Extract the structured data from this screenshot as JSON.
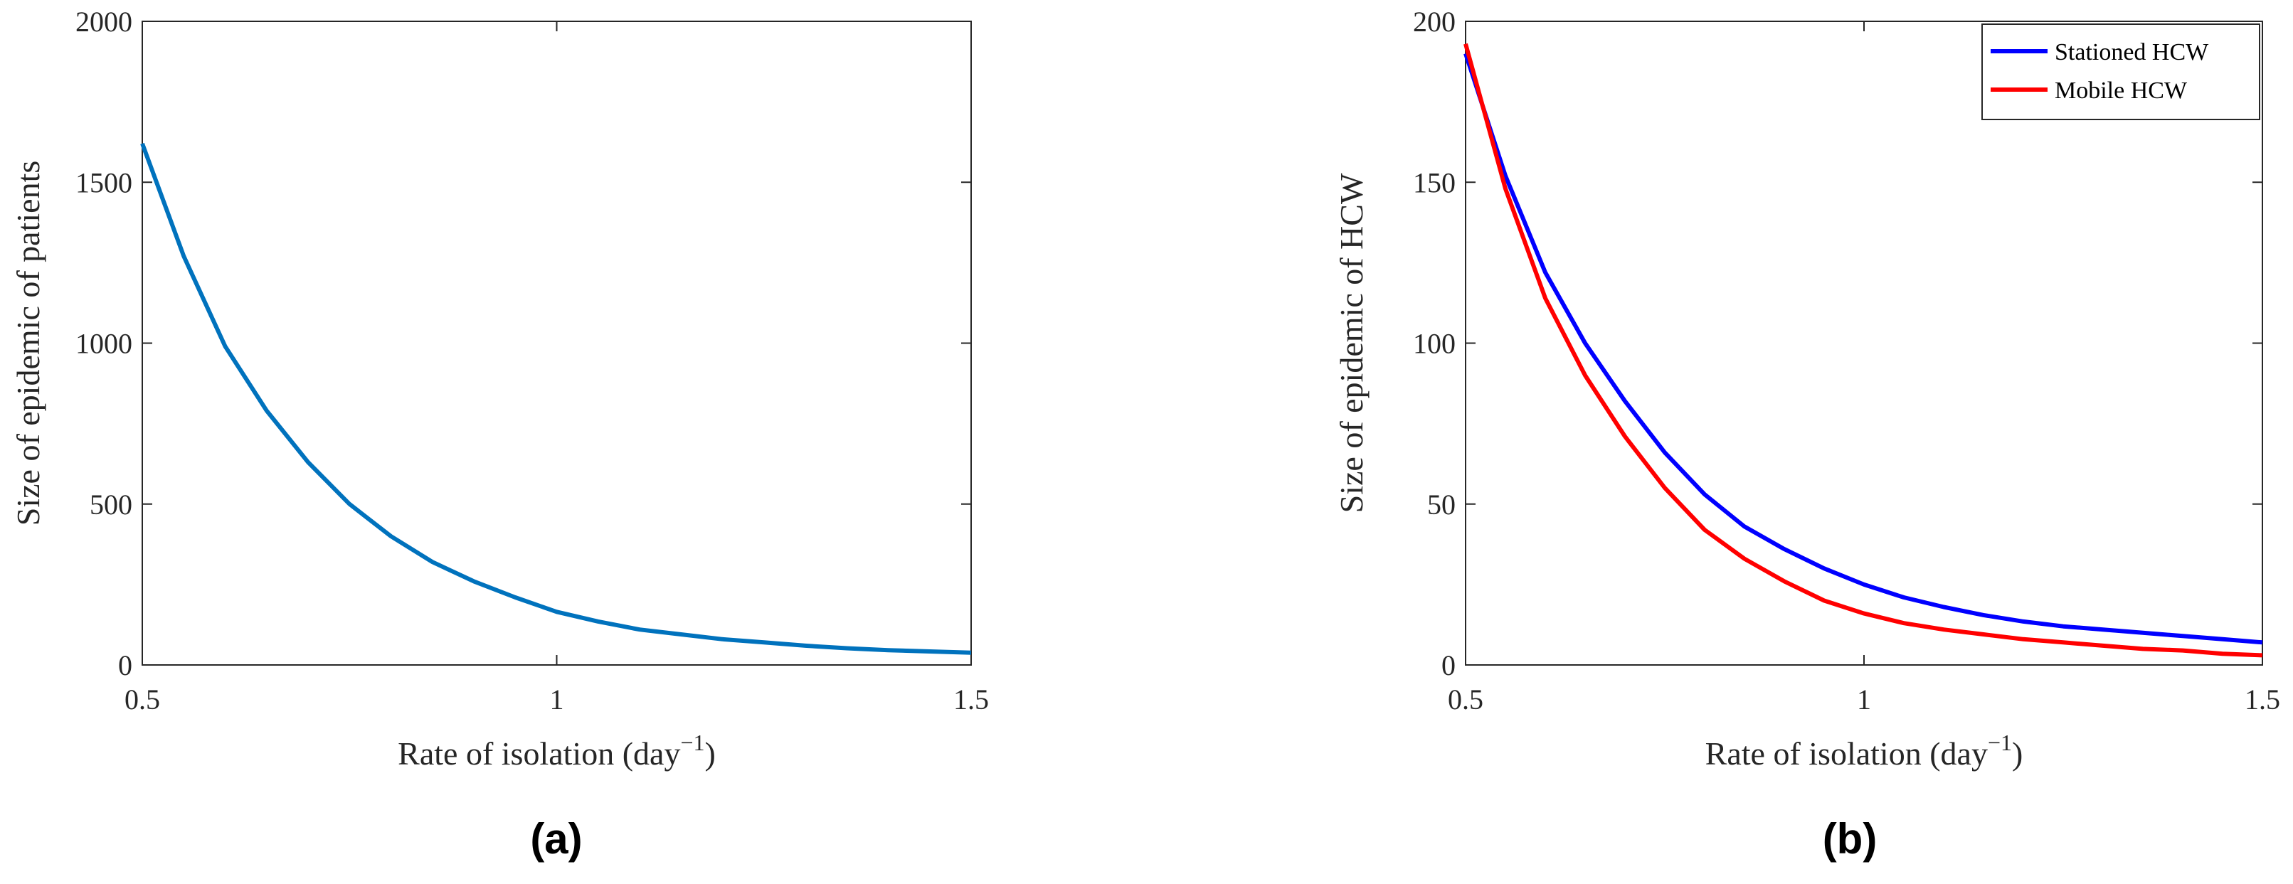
{
  "chart_data": [
    {
      "type": "line",
      "panel_label": "(a)",
      "xlabel": "Rate of isolation (day",
      "xlabel_sup": "−1",
      "xlabel_close": ")",
      "ylabel": "Size of epidemic of patients",
      "xlim": [
        0.5,
        1.5
      ],
      "ylim": [
        0,
        2000
      ],
      "xticks": [
        0.5,
        1,
        1.5
      ],
      "xtick_labels": [
        "0.5",
        "1",
        "1.5"
      ],
      "yticks": [
        0,
        500,
        1000,
        1500,
        2000
      ],
      "ytick_labels": [
        "0",
        "500",
        "1000",
        "1500",
        "2000"
      ],
      "grid": false,
      "legend": null,
      "series": [
        {
          "color": "#0072BD",
          "x": [
            0.5,
            0.55,
            0.6,
            0.65,
            0.7,
            0.75,
            0.8,
            0.85,
            0.9,
            0.95,
            1.0,
            1.05,
            1.1,
            1.15,
            1.2,
            1.25,
            1.3,
            1.35,
            1.4,
            1.45,
            1.5
          ],
          "y": [
            1620,
            1270,
            990,
            790,
            630,
            500,
            400,
            320,
            260,
            210,
            165,
            135,
            110,
            95,
            80,
            70,
            60,
            52,
            46,
            42,
            38
          ]
        }
      ]
    },
    {
      "type": "line",
      "panel_label": "(b)",
      "xlabel": "Rate of isolation (day",
      "xlabel_sup": "−1",
      "xlabel_close": ")",
      "ylabel": "Size of epidemic of HCW",
      "xlim": [
        0.5,
        1.5
      ],
      "ylim": [
        0,
        200
      ],
      "xticks": [
        0.5,
        1,
        1.5
      ],
      "xtick_labels": [
        "0.5",
        "1",
        "1.5"
      ],
      "yticks": [
        0,
        50,
        100,
        150,
        200
      ],
      "ytick_labels": [
        "0",
        "50",
        "100",
        "150",
        "200"
      ],
      "grid": false,
      "legend": "top-right",
      "series": [
        {
          "name": "Stationed HCW",
          "color": "#0000FF",
          "x": [
            0.5,
            0.55,
            0.6,
            0.65,
            0.7,
            0.75,
            0.8,
            0.85,
            0.9,
            0.95,
            1.0,
            1.05,
            1.1,
            1.15,
            1.2,
            1.25,
            1.3,
            1.35,
            1.4,
            1.45,
            1.5
          ],
          "y": [
            190,
            152,
            122,
            100,
            82,
            66,
            53,
            43,
            36,
            30,
            25,
            21,
            18,
            15.5,
            13.5,
            12,
            11,
            10,
            9,
            8,
            7
          ]
        },
        {
          "name": "Mobile HCW",
          "color": "#FF0000",
          "x": [
            0.5,
            0.55,
            0.6,
            0.65,
            0.7,
            0.75,
            0.8,
            0.85,
            0.9,
            0.95,
            1.0,
            1.05,
            1.1,
            1.15,
            1.2,
            1.25,
            1.3,
            1.35,
            1.4,
            1.45,
            1.5
          ],
          "y": [
            193,
            148,
            114,
            90,
            71,
            55,
            42,
            33,
            26,
            20,
            16,
            13,
            11,
            9.5,
            8,
            7,
            6,
            5,
            4.5,
            3.5,
            3
          ]
        }
      ]
    }
  ]
}
